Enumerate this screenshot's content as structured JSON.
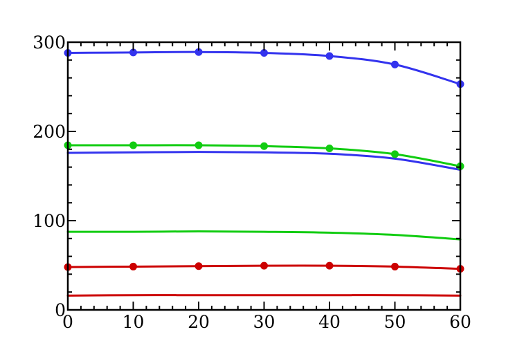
{
  "chart_data": {
    "type": "line",
    "title": "",
    "xlabel": "",
    "ylabel": "",
    "xlim": [
      0,
      60
    ],
    "ylim": [
      0,
      300
    ],
    "x_ticks": [
      0,
      10,
      20,
      30,
      40,
      50,
      60
    ],
    "y_ticks": [
      0,
      100,
      200,
      300
    ],
    "x_tick_labels": [
      "0",
      "10",
      "20",
      "30",
      "40",
      "50",
      "60"
    ],
    "y_tick_labels": [
      "0",
      "100",
      "200",
      "300"
    ],
    "grid": false,
    "legend": "none",
    "series": [
      {
        "color": "#3333ee",
        "markers": true,
        "x": [
          0,
          10,
          20,
          30,
          40,
          50,
          60
        ],
        "values": [
          288,
          288.5,
          289,
          288,
          284.5,
          275,
          253
        ]
      },
      {
        "color": "#3333ee",
        "markers": false,
        "x": [
          0,
          10,
          20,
          30,
          40,
          50,
          60
        ],
        "values": [
          176,
          176.5,
          177,
          176.5,
          175,
          169.5,
          157
        ]
      },
      {
        "color": "#11cc11",
        "markers": true,
        "x": [
          0,
          10,
          20,
          30,
          40,
          50,
          60
        ],
        "values": [
          184.5,
          184.5,
          184.5,
          183.5,
          181,
          174.5,
          161
        ]
      },
      {
        "color": "#11cc11",
        "markers": false,
        "x": [
          0,
          10,
          20,
          30,
          40,
          50,
          60
        ],
        "values": [
          87.5,
          87.5,
          88,
          87.5,
          86.5,
          84,
          79
        ]
      },
      {
        "color": "#cc0000",
        "markers": true,
        "x": [
          0,
          10,
          20,
          30,
          40,
          50,
          60
        ],
        "values": [
          48,
          48.5,
          49,
          49.5,
          49.5,
          48.5,
          46
        ]
      },
      {
        "color": "#cc0000",
        "markers": false,
        "x": [
          0,
          10,
          20,
          30,
          40,
          50,
          60
        ],
        "values": [
          16,
          16.5,
          16.5,
          16.5,
          16.5,
          16.5,
          16
        ]
      }
    ]
  }
}
